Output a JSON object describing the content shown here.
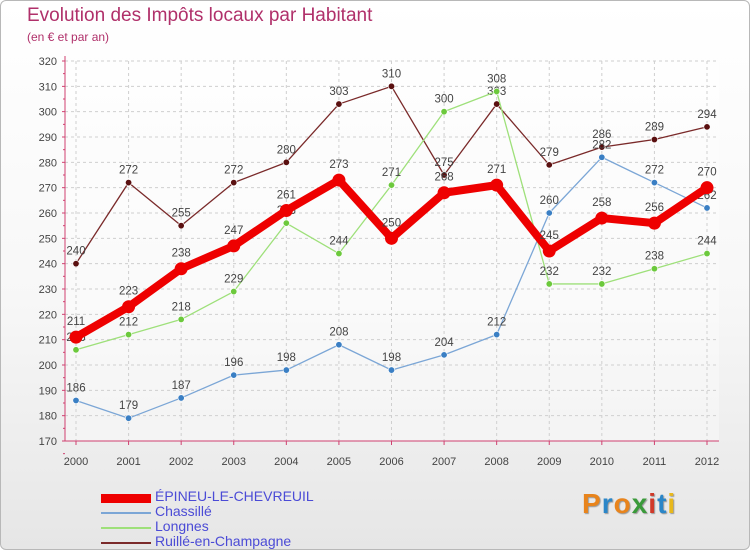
{
  "title": "Evolution des Impôts locaux par Habitant",
  "subtitle": "(en € et par an)",
  "logo": {
    "text": "Proxiti",
    "colors": [
      "#e8841c",
      "#2b86c8",
      "#e8841c",
      "#3a9a3a",
      "#d03a2a",
      "#2b86c8",
      "#e8b81c"
    ]
  },
  "chart_data": {
    "type": "line",
    "title": "Evolution des Impôts locaux par Habitant",
    "subtitle": "(en € et par an)",
    "xlabel": "",
    "ylabel": "",
    "categories": [
      "2000",
      "2001",
      "2002",
      "2003",
      "2004",
      "2005",
      "2006",
      "2007",
      "2008",
      "2009",
      "2010",
      "2011",
      "2012"
    ],
    "ylim": [
      170,
      320
    ],
    "yticks": [
      170,
      180,
      190,
      200,
      210,
      220,
      230,
      240,
      250,
      260,
      270,
      280,
      290,
      300,
      310,
      320
    ],
    "grid": true,
    "legend_position": "bottom-left",
    "series": [
      {
        "name": "Ruillé-en-Champagne",
        "color": "#7a2a2a",
        "marker": "#5a1010",
        "width": 1.3,
        "values": [
          240,
          272,
          255,
          272,
          280,
          303,
          310,
          275,
          303,
          279,
          286,
          289,
          294
        ],
        "labels": [
          "240",
          "272",
          "255",
          "272",
          "280",
          "303",
          "310",
          "275",
          "303",
          "279",
          "286",
          "289",
          "294"
        ]
      },
      {
        "name": "Longnes",
        "color": "#9ee07a",
        "marker": "#6cc93c",
        "width": 1.3,
        "values": [
          206,
          212,
          218,
          229,
          256,
          244,
          271,
          300,
          308,
          232,
          232,
          238,
          244
        ],
        "labels": [
          "206",
          "212",
          "218",
          "229",
          "256",
          "244",
          "271",
          "300",
          "308",
          "232",
          "232",
          "238",
          "244"
        ]
      },
      {
        "name": "Chassillé",
        "color": "#7ba6d6",
        "marker": "#3a7fc4",
        "width": 1.3,
        "values": [
          186,
          179,
          187,
          196,
          198,
          208,
          198,
          204,
          212,
          260,
          282,
          272,
          262
        ],
        "labels": [
          "186",
          "179",
          "187",
          "196",
          "198",
          "208",
          "198",
          "204",
          "212",
          "260",
          "282",
          "272",
          "262"
        ]
      },
      {
        "name": "ÉPINEU-LE-CHEVREUIL",
        "color": "#ee0000",
        "marker": "#ee0000",
        "width": 8,
        "values": [
          211,
          223,
          238,
          247,
          261,
          273,
          250,
          268,
          271,
          245,
          258,
          256,
          270
        ],
        "labels": [
          "211",
          "223",
          "238",
          "247",
          "261",
          "273",
          "250",
          "268",
          "271",
          "245",
          "258",
          "256",
          "270"
        ]
      }
    ],
    "legend": [
      "ÉPINEU-LE-CHEVREUIL",
      "Chassillé",
      "Longnes",
      "Ruillé-en-Champagne"
    ]
  }
}
